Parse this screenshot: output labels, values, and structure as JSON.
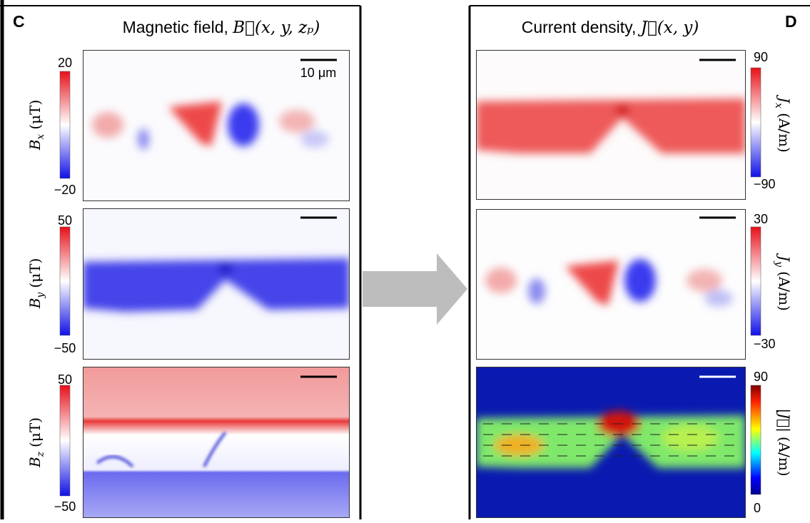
{
  "panel_c": {
    "label": "C",
    "title": "Magnetic field,",
    "title_math": "B⃗(x, y, zₚ)",
    "scale_bar": "10 μm",
    "maps": [
      {
        "symbol": "B",
        "subscript": "x",
        "unit": "(μT)",
        "max": "20",
        "min": "−20"
      },
      {
        "symbol": "B",
        "subscript": "y",
        "unit": "(μT)",
        "max": "50",
        "min": "−50"
      },
      {
        "symbol": "B",
        "subscript": "z",
        "unit": "(μT)",
        "max": "50",
        "min": "−50"
      }
    ]
  },
  "panel_d": {
    "label": "D",
    "title": "Current density,",
    "title_math": "J⃗(x, y)",
    "maps": [
      {
        "symbol": "J",
        "subscript": "x",
        "unit": "(A/m)",
        "max": "90",
        "min": "−90"
      },
      {
        "symbol": "J",
        "subscript": "y",
        "unit": "(A/m)",
        "max": "30",
        "min": "−30"
      },
      {
        "symbol": "|J⃗|",
        "subscript": "",
        "unit": "(A/m)",
        "max": "90",
        "min": "0"
      }
    ]
  }
}
